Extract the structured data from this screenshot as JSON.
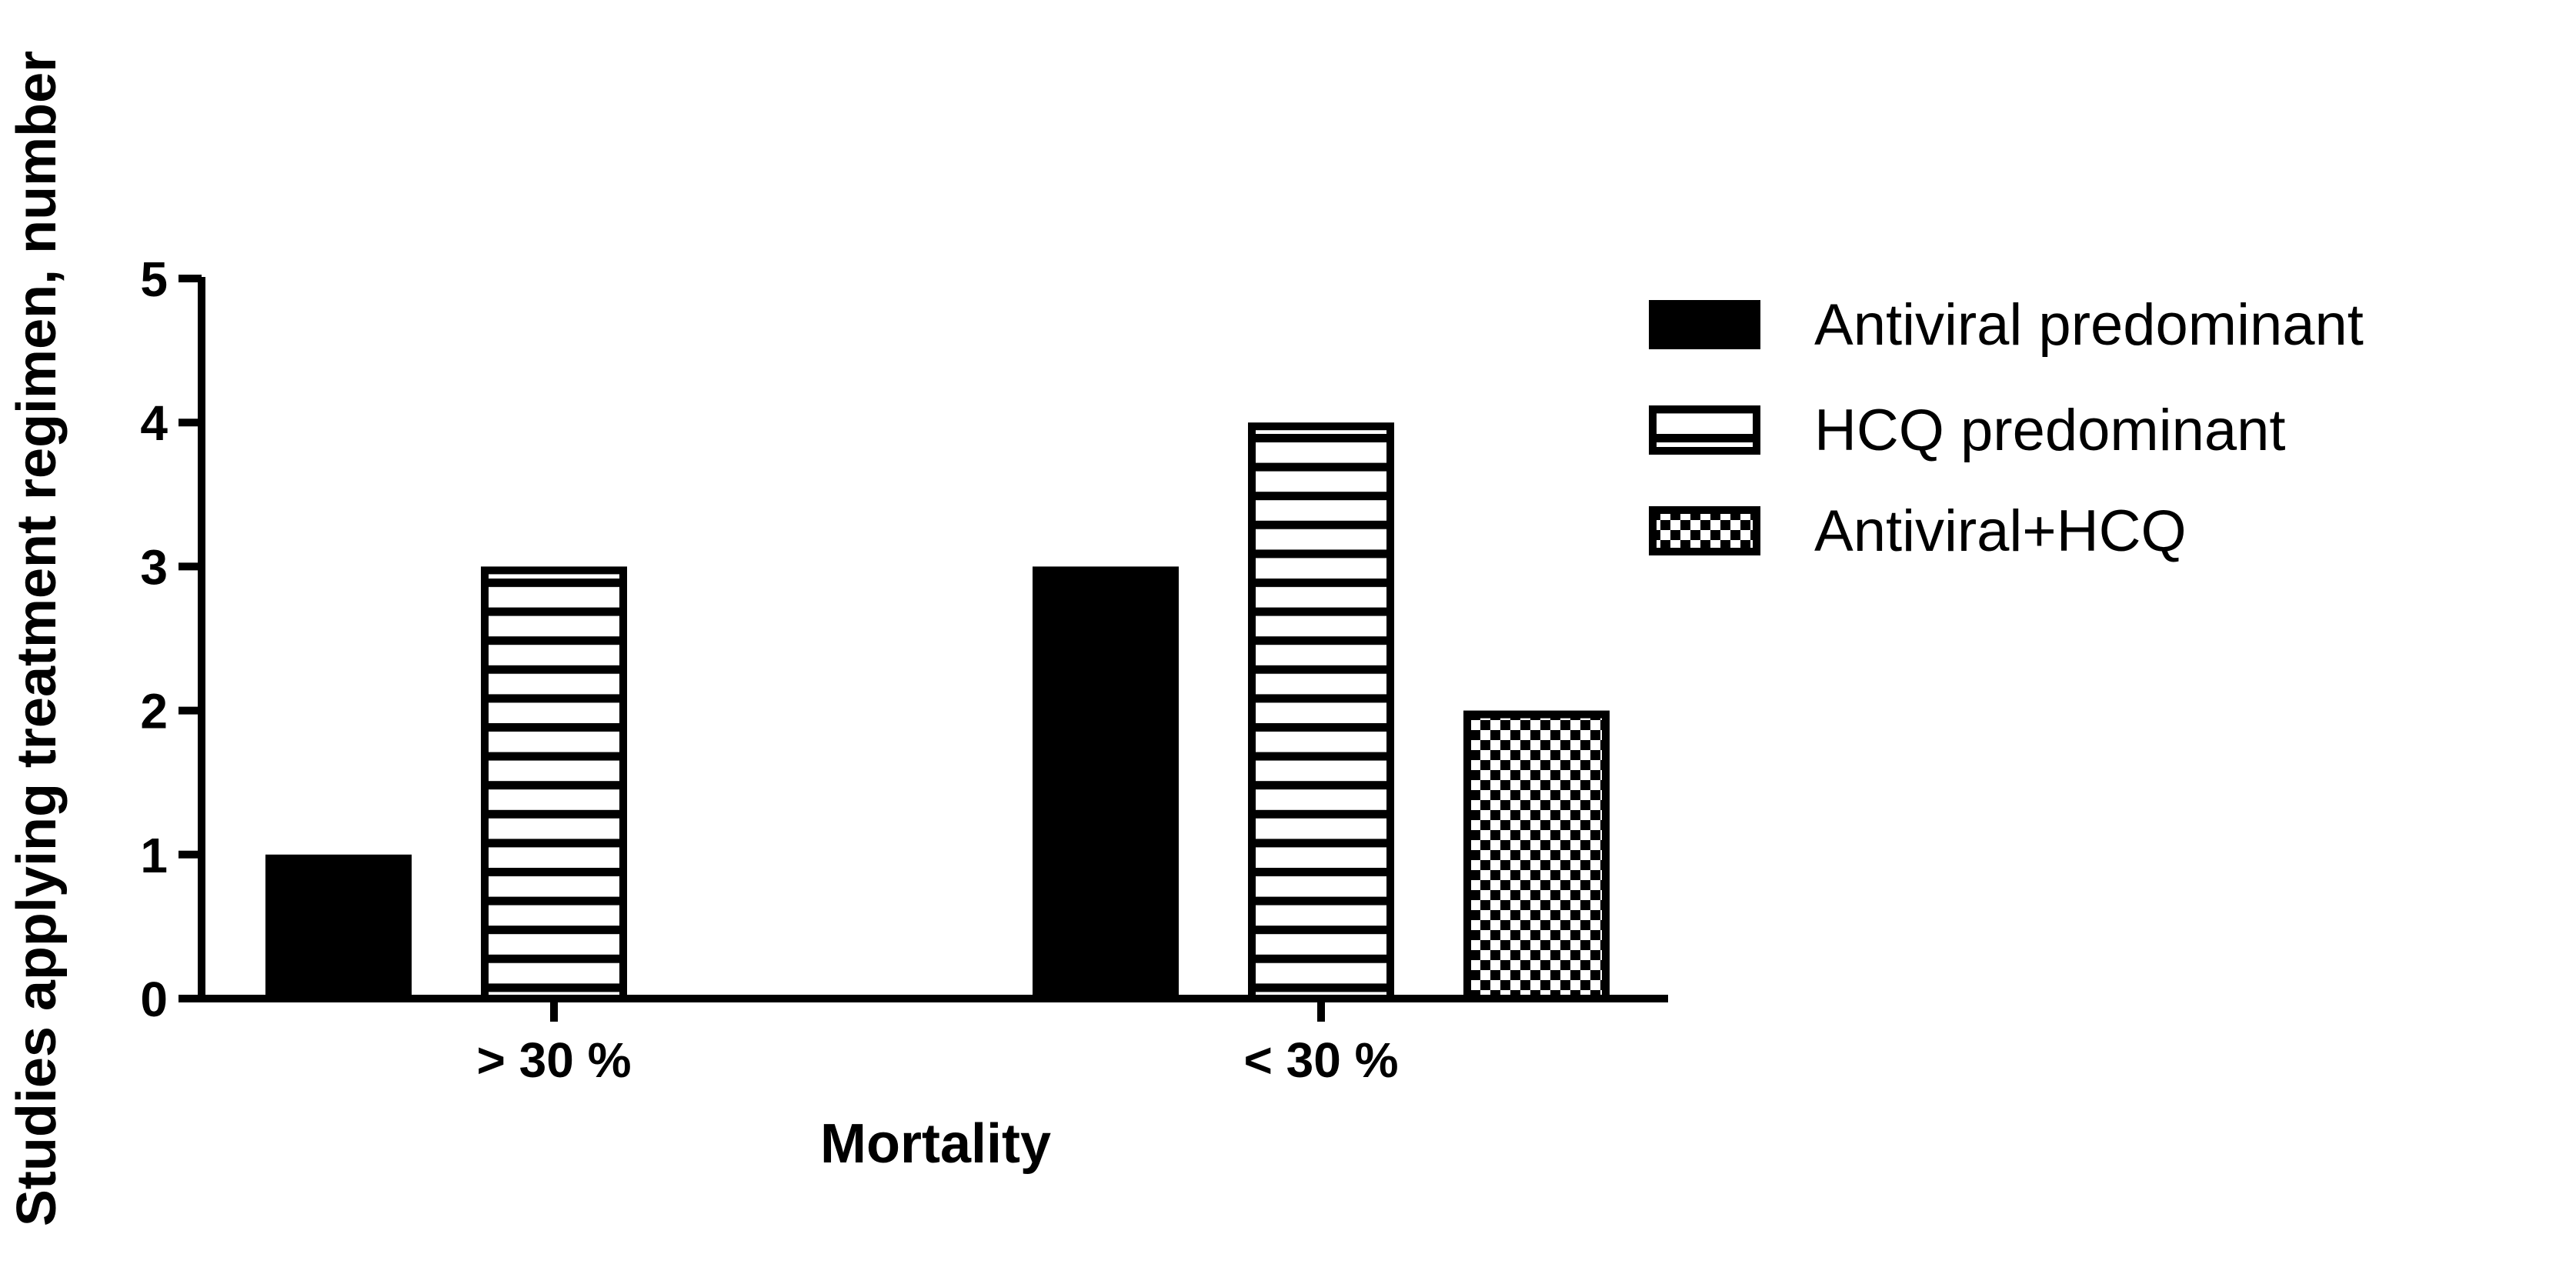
{
  "chart_data": {
    "type": "bar",
    "categories": [
      "> 30 %",
      "< 30 %"
    ],
    "series": [
      {
        "name": "Antiviral predominant",
        "values": [
          1,
          3
        ],
        "pattern": "solid"
      },
      {
        "name": "HCQ predominant",
        "values": [
          3,
          4
        ],
        "pattern": "horizontal-stripes"
      },
      {
        "name": "Antiviral+HCQ",
        "values": [
          null,
          2
        ],
        "pattern": "checkerboard"
      }
    ],
    "xlabel": "Mortality",
    "ylabel": "Studies applying treatment regimen, number",
    "ylim": [
      0,
      5
    ],
    "yticks": [
      "0",
      "1",
      "2",
      "3",
      "4",
      "5"
    ],
    "grid": false,
    "legend_position": "right",
    "colors": {
      "bar_fill": "#000000",
      "bar_stroke": "#000000",
      "background": "#ffffff"
    }
  }
}
